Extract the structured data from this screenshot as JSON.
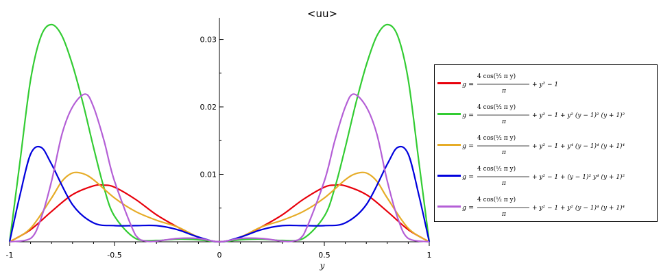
{
  "chart_data": {
    "type": "line",
    "title": "<uu>",
    "xlabel": "y",
    "ylabel": "",
    "xlim": [
      -1,
      1
    ],
    "ylim": [
      0,
      0.033
    ],
    "x_ticks": [
      {
        "value": -1,
        "label": "-1"
      },
      {
        "value": -0.5,
        "label": "-0.5"
      },
      {
        "value": 0,
        "label": "0"
      },
      {
        "value": 0.5,
        "label": "0.5"
      },
      {
        "value": 1,
        "label": "1"
      }
    ],
    "y_ticks": [
      {
        "value": 0.01,
        "label": "0.01"
      },
      {
        "value": 0.02,
        "label": "0.02"
      },
      {
        "value": 0.03,
        "label": "0.03"
      }
    ],
    "legend_position": "right",
    "series": [
      {
        "name": "g = 4 cos(½ π y)/π + y² − 1",
        "color": "#e8000b",
        "points": [
          [
            0,
            0
          ],
          [
            0.1,
            0.0007
          ],
          [
            0.2,
            0.0022
          ],
          [
            0.3,
            0.004
          ],
          [
            0.4,
            0.0063
          ],
          [
            0.5,
            0.0081
          ],
          [
            0.55,
            0.0084
          ],
          [
            0.6,
            0.0083
          ],
          [
            0.7,
            0.007
          ],
          [
            0.8,
            0.0045
          ],
          [
            0.9,
            0.0018
          ],
          [
            1,
            0
          ]
        ]
      },
      {
        "name": "g = 4 cos(½ π y)/π + y² − 1 + y² (y − 1)² (y + 1)²",
        "color": "#33cc33",
        "points": [
          [
            0,
            0
          ],
          [
            0.1,
            0.0003
          ],
          [
            0.2,
            0.0004
          ],
          [
            0.3,
            0.0002
          ],
          [
            0.4,
            0.0005
          ],
          [
            0.5,
            0.0038
          ],
          [
            0.55,
            0.008
          ],
          [
            0.6,
            0.014
          ],
          [
            0.65,
            0.0205
          ],
          [
            0.7,
            0.0262
          ],
          [
            0.75,
            0.0305
          ],
          [
            0.8,
            0.0322
          ],
          [
            0.85,
            0.0305
          ],
          [
            0.9,
            0.024
          ],
          [
            0.95,
            0.012
          ],
          [
            1,
            0
          ]
        ]
      },
      {
        "name": "g = 4 cos(½ π y)/π + y² − 1 + y⁴ (y − 1)⁴ (y + 1)⁴",
        "color": "#e6ac27",
        "points": [
          [
            0,
            0
          ],
          [
            0.1,
            0.0007
          ],
          [
            0.2,
            0.0022
          ],
          [
            0.3,
            0.0032
          ],
          [
            0.4,
            0.0045
          ],
          [
            0.5,
            0.0065
          ],
          [
            0.6,
            0.0092
          ],
          [
            0.65,
            0.0101
          ],
          [
            0.7,
            0.0102
          ],
          [
            0.75,
            0.009
          ],
          [
            0.8,
            0.0065
          ],
          [
            0.9,
            0.002
          ],
          [
            1,
            0
          ]
        ]
      },
      {
        "name": "g = 4 cos(½ π y)/π + y² − 1 + (y − 1)² y⁴ (y + 1)²",
        "color": "#0000dd",
        "points": [
          [
            0,
            0
          ],
          [
            0.1,
            0.0007
          ],
          [
            0.2,
            0.0018
          ],
          [
            0.3,
            0.0024
          ],
          [
            0.4,
            0.0024
          ],
          [
            0.5,
            0.0024
          ],
          [
            0.6,
            0.0028
          ],
          [
            0.7,
            0.0055
          ],
          [
            0.8,
            0.0115
          ],
          [
            0.85,
            0.014
          ],
          [
            0.9,
            0.013
          ],
          [
            0.95,
            0.007
          ],
          [
            1,
            0
          ]
        ]
      },
      {
        "name": "g = 4 cos(½ π y)/π + y² − 1 + y² (y − 1)⁴ (y + 1)⁴",
        "color": "#b45fd6",
        "points": [
          [
            0,
            0
          ],
          [
            0.1,
            0.0005
          ],
          [
            0.2,
            0.0005
          ],
          [
            0.3,
            0.0001
          ],
          [
            0.35,
            0.0001
          ],
          [
            0.4,
            0.001
          ],
          [
            0.5,
            0.009
          ],
          [
            0.55,
            0.015
          ],
          [
            0.6,
            0.02
          ],
          [
            0.64,
            0.0219
          ],
          [
            0.7,
            0.02
          ],
          [
            0.75,
            0.016
          ],
          [
            0.8,
            0.009
          ],
          [
            0.85,
            0.0035
          ],
          [
            0.9,
            0.0005
          ],
          [
            1,
            0
          ]
        ]
      }
    ],
    "legend_entries": [
      {
        "lhs": "g =",
        "num": "4 cos(½ π y)",
        "den": "π",
        "rest": "+ y² − 1"
      },
      {
        "lhs": "g =",
        "num": "4 cos(½ π y)",
        "den": "π",
        "rest": "+ y² − 1 + y² (y − 1)² (y + 1)²"
      },
      {
        "lhs": "g =",
        "num": "4 cos(½ π y)",
        "den": "π",
        "rest": "+ y² − 1 + y⁴ (y − 1)⁴ (y + 1)⁴"
      },
      {
        "lhs": "g =",
        "num": "4 cos(½ π y)",
        "den": "π",
        "rest": "+ y² − 1 + (y − 1)² y⁴ (y + 1)²"
      },
      {
        "lhs": "g =",
        "num": "4 cos(½ π y)",
        "den": "π",
        "rest": "+ y² − 1 + y² (y − 1)⁴ (y + 1)⁴"
      }
    ]
  }
}
